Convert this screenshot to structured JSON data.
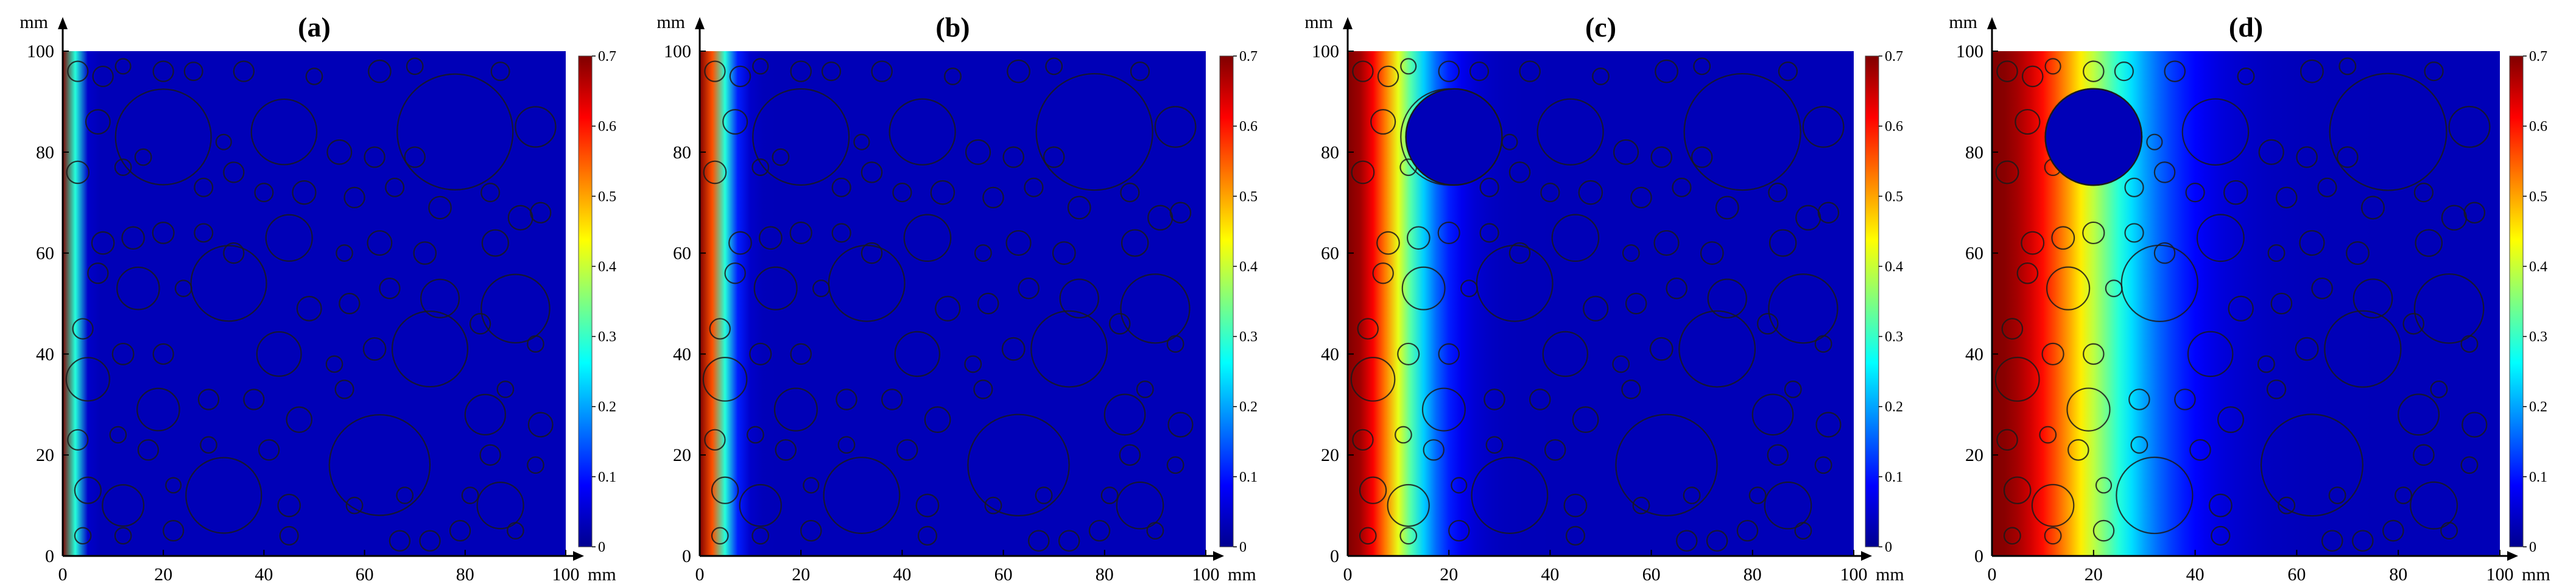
{
  "chart_data": [
    {
      "type": "heatmap",
      "title": "(a)",
      "xlabel": "mm",
      "ylabel": "mm",
      "xlim": [
        0,
        100
      ],
      "ylim": [
        0,
        100
      ],
      "x_ticks": [
        0,
        20,
        40,
        60,
        80,
        100
      ],
      "y_ticks": [
        0,
        20,
        40,
        60,
        80,
        100
      ],
      "x_tick_labels": [
        "0",
        "20",
        "40",
        "60",
        "80",
        "100"
      ],
      "y_tick_labels": [
        "0",
        "20",
        "40",
        "60",
        "80",
        "100"
      ],
      "colorbar": {
        "min": 0,
        "max": 0.7,
        "ticks": [
          "0",
          "0.1",
          "0.2",
          "0.3",
          "0.4",
          "0.5",
          "0.6",
          "0.7"
        ]
      },
      "front_depth_mm": 3,
      "hole_inclusion_center": null
    },
    {
      "type": "heatmap",
      "title": "(b)",
      "xlabel": "mm",
      "ylabel": "mm",
      "xlim": [
        0,
        100
      ],
      "ylim": [
        0,
        100
      ],
      "x_ticks": [
        0,
        20,
        40,
        60,
        80,
        100
      ],
      "y_ticks": [
        0,
        20,
        40,
        60,
        80,
        100
      ],
      "x_tick_labels": [
        "0",
        "20",
        "40",
        "60",
        "80",
        "100"
      ],
      "y_tick_labels": [
        "0",
        "20",
        "40",
        "60",
        "80",
        "100"
      ],
      "colorbar": {
        "min": 0,
        "max": 0.7,
        "ticks": [
          "0",
          "0.1",
          "0.2",
          "0.3",
          "0.4",
          "0.5",
          "0.6",
          "0.7"
        ]
      },
      "front_depth_mm": 6,
      "hole_inclusion_center": null
    },
    {
      "type": "heatmap",
      "title": "(c)",
      "xlabel": "mm",
      "ylabel": "mm",
      "xlim": [
        0,
        100
      ],
      "ylim": [
        0,
        100
      ],
      "x_ticks": [
        0,
        20,
        40,
        60,
        80,
        100
      ],
      "y_ticks": [
        0,
        20,
        40,
        60,
        80,
        100
      ],
      "x_tick_labels": [
        "0",
        "20",
        "40",
        "60",
        "80",
        "100"
      ],
      "y_tick_labels": [
        "0",
        "20",
        "40",
        "60",
        "80",
        "100"
      ],
      "colorbar": {
        "min": 0,
        "max": 0.7,
        "ticks": [
          "0",
          "0.1",
          "0.2",
          "0.3",
          "0.4",
          "0.5",
          "0.6",
          "0.7"
        ]
      },
      "front_depth_mm": 16,
      "hole_inclusion_center": [
        21,
        83
      ]
    },
    {
      "type": "heatmap",
      "title": "(d)",
      "xlabel": "mm",
      "ylabel": "mm",
      "xlim": [
        0,
        100
      ],
      "ylim": [
        0,
        100
      ],
      "x_ticks": [
        0,
        20,
        40,
        60,
        80,
        100
      ],
      "y_ticks": [
        0,
        20,
        40,
        60,
        80,
        100
      ],
      "x_tick_labels": [
        "0",
        "20",
        "40",
        "60",
        "80",
        "100"
      ],
      "y_tick_labels": [
        "0",
        "20",
        "40",
        "60",
        "80",
        "100"
      ],
      "colorbar": {
        "min": 0,
        "max": 0.7,
        "ticks": [
          "0",
          "0.1",
          "0.2",
          "0.3",
          "0.4",
          "0.5",
          "0.6",
          "0.7"
        ]
      },
      "front_depth_mm": 30,
      "hole_inclusion_center": [
        20,
        83
      ]
    }
  ],
  "colors": {
    "colormap": [
      "#00008f",
      "#0000ff",
      "#00ffff",
      "#ffff00",
      "#ff0000",
      "#800000"
    ],
    "background_field": "#0a0fa6",
    "inclusion_outline": "#1a1a1a"
  }
}
